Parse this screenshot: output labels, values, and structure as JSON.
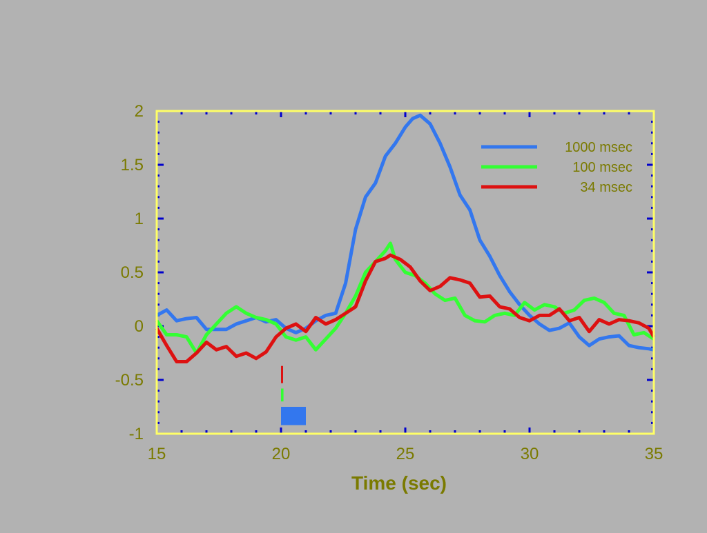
{
  "colors": {
    "background": "#b2b2b2",
    "frame": "#ffff66",
    "ticks": "#0000cc",
    "label_text": "#7a7a00"
  },
  "chart_data": {
    "type": "line",
    "title": "",
    "xlabel": "Time (sec)",
    "ylabel": "",
    "xlim": [
      15,
      35
    ],
    "ylim": [
      -1,
      2
    ],
    "xticks": [
      15,
      20,
      25,
      30,
      35
    ],
    "xtick_labels": [
      "15",
      "20",
      "25",
      "30",
      "35"
    ],
    "yticks": [
      2,
      1.5,
      1,
      0.5,
      0,
      -0.5,
      -1
    ],
    "ytick_labels": [
      "2",
      "1.5",
      "1",
      "0.5",
      "0",
      "-0.5",
      "-1"
    ],
    "grid": false,
    "legend_position": "top-right",
    "series": [
      {
        "name": "1000 msec",
        "color": "#3377ee",
        "x": [
          15,
          15.4,
          15.8,
          16.2,
          16.6,
          17,
          17.4,
          17.8,
          18.2,
          18.6,
          19,
          19.4,
          19.8,
          20.2,
          20.6,
          21,
          21.4,
          21.8,
          22.2,
          22.6,
          23,
          23.4,
          23.8,
          24.2,
          24.6,
          25,
          25.3,
          25.6,
          26,
          26.4,
          26.8,
          27.2,
          27.6,
          28,
          28.4,
          28.8,
          29.2,
          29.6,
          30,
          30.4,
          30.8,
          31.2,
          31.6,
          32,
          32.4,
          32.8,
          33.2,
          33.6,
          34,
          34.4,
          34.8,
          35
        ],
        "y": [
          0.1,
          0.15,
          0.05,
          0.07,
          0.08,
          -0.03,
          -0.03,
          -0.03,
          0.02,
          0.05,
          0.08,
          0.04,
          0.06,
          -0.02,
          -0.06,
          -0.02,
          0.05,
          0.1,
          0.12,
          0.4,
          0.9,
          1.2,
          1.33,
          1.58,
          1.7,
          1.85,
          1.93,
          1.96,
          1.88,
          1.7,
          1.48,
          1.22,
          1.08,
          0.8,
          0.65,
          0.47,
          0.32,
          0.2,
          0.1,
          0.02,
          -0.04,
          -0.02,
          0.03,
          -0.1,
          -0.18,
          -0.12,
          -0.1,
          -0.09,
          -0.18,
          -0.2,
          -0.21,
          -0.22
        ]
      },
      {
        "name": "100 msec",
        "color": "#33ff33",
        "x": [
          15,
          15.4,
          15.8,
          16.2,
          16.6,
          17,
          17.4,
          17.8,
          18.2,
          18.6,
          19,
          19.4,
          19.8,
          20.2,
          20.6,
          21,
          21.4,
          21.8,
          22.2,
          22.6,
          23,
          23.4,
          23.8,
          24.2,
          24.4,
          24.6,
          25,
          25.4,
          25.8,
          26.2,
          26.6,
          27,
          27.4,
          27.8,
          28.2,
          28.6,
          29,
          29.4,
          29.8,
          30.2,
          30.6,
          31,
          31.4,
          31.8,
          32.2,
          32.6,
          33,
          33.4,
          33.8,
          34.2,
          34.6,
          35
        ],
        "y": [
          0.05,
          -0.08,
          -0.08,
          -0.1,
          -0.25,
          -0.08,
          0.02,
          0.12,
          0.18,
          0.12,
          0.08,
          0.06,
          0.02,
          -0.1,
          -0.13,
          -0.1,
          -0.22,
          -0.12,
          -0.02,
          0.12,
          0.28,
          0.5,
          0.6,
          0.7,
          0.77,
          0.62,
          0.5,
          0.47,
          0.4,
          0.3,
          0.24,
          0.26,
          0.1,
          0.05,
          0.04,
          0.1,
          0.12,
          0.1,
          0.22,
          0.15,
          0.2,
          0.18,
          0.12,
          0.15,
          0.24,
          0.26,
          0.22,
          0.12,
          0.1,
          -0.08,
          -0.06,
          -0.12
        ]
      },
      {
        "name": "34  msec",
        "color": "#dd1111",
        "x": [
          15,
          15.4,
          15.8,
          16.2,
          16.6,
          17,
          17.4,
          17.8,
          18.2,
          18.6,
          19,
          19.4,
          19.8,
          20.2,
          20.6,
          21,
          21.4,
          21.8,
          22.2,
          22.6,
          23,
          23.4,
          23.8,
          24.2,
          24.4,
          24.8,
          25.2,
          25.6,
          26,
          26.4,
          26.8,
          27.2,
          27.6,
          28,
          28.4,
          28.8,
          29.2,
          29.6,
          30,
          30.4,
          30.8,
          31.2,
          31.6,
          32,
          32.4,
          32.8,
          33.2,
          33.6,
          34,
          34.4,
          34.8,
          35
        ],
        "y": [
          -0.02,
          -0.18,
          -0.33,
          -0.33,
          -0.25,
          -0.15,
          -0.22,
          -0.19,
          -0.28,
          -0.25,
          -0.3,
          -0.24,
          -0.1,
          -0.02,
          0.02,
          -0.05,
          0.08,
          0.02,
          0.06,
          0.12,
          0.18,
          0.42,
          0.6,
          0.63,
          0.66,
          0.62,
          0.55,
          0.42,
          0.33,
          0.37,
          0.45,
          0.43,
          0.4,
          0.27,
          0.28,
          0.18,
          0.16,
          0.08,
          0.05,
          0.1,
          0.1,
          0.16,
          0.05,
          0.08,
          -0.05,
          0.06,
          0.02,
          0.06,
          0.05,
          0.03,
          -0.02,
          -0.1
        ]
      }
    ],
    "stimulus_markers": [
      {
        "series": "34  msec",
        "color": "#dd1111",
        "start": 20.0,
        "duration": 0.034,
        "y_from": -0.37,
        "y_to": -0.53
      },
      {
        "series": "100 msec",
        "color": "#33ff33",
        "start": 20.0,
        "duration": 0.1,
        "y_from": -0.58,
        "y_to": -0.7
      },
      {
        "series": "1000 msec",
        "color": "#3377ee",
        "start": 20.0,
        "duration": 1.0,
        "y_from": -0.75,
        "y_to": -0.92
      }
    ]
  }
}
